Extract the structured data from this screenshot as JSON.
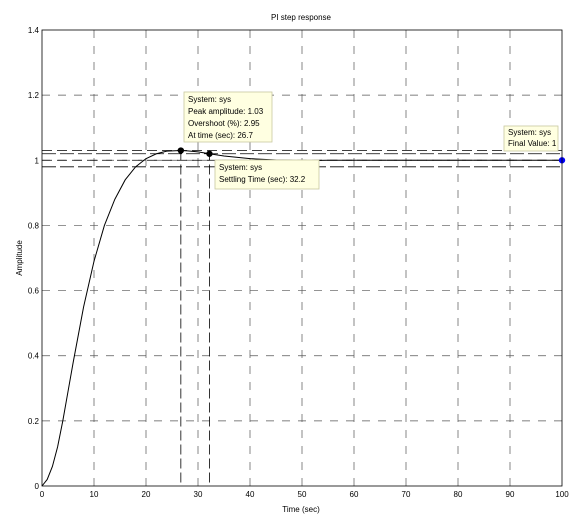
{
  "chart_data": {
    "type": "line",
    "title": "PI step response",
    "xlabel": "Time (sec)",
    "ylabel": "Amplitude",
    "xlim": [
      0,
      100
    ],
    "ylim": [
      0,
      1.4
    ],
    "xticks": [
      0,
      10,
      20,
      30,
      40,
      50,
      60,
      70,
      80,
      90,
      100
    ],
    "yticks": [
      0,
      0.2,
      0.4,
      0.6,
      0.8,
      1,
      1.2,
      1.4
    ],
    "xtick_labels": [
      "0",
      "10",
      "20",
      "30",
      "40",
      "50",
      "60",
      "70",
      "80",
      "90",
      "100"
    ],
    "ytick_labels": [
      "0",
      "0.2",
      "0.4",
      "0.6",
      "0.8",
      "1",
      "1.2",
      "1.4"
    ],
    "grid": true,
    "series": [
      {
        "color": "#000000",
        "x": [
          0,
          1,
          2,
          3,
          4,
          5,
          6,
          8,
          10,
          12,
          14,
          16,
          18,
          20,
          22,
          24,
          26.7,
          28,
          30,
          32.2,
          35,
          40,
          45,
          50,
          55,
          60,
          70,
          80,
          90,
          100
        ],
        "y": [
          0,
          0.02,
          0.06,
          0.12,
          0.2,
          0.29,
          0.38,
          0.55,
          0.69,
          0.8,
          0.88,
          0.94,
          0.98,
          1.005,
          1.02,
          1.028,
          1.03,
          1.029,
          1.026,
          1.02,
          1.013,
          1.005,
          1.001,
          0.999,
          1.0,
          1.0,
          1.0,
          1.0,
          1.0,
          1.0
        ]
      }
    ],
    "settling_band": [
      0.98,
      1.02
    ],
    "reference_lines_y": [
      1.03,
      1.0
    ],
    "reference_lines_x": [
      26.7,
      32.2
    ],
    "markers": [
      {
        "x": 26.7,
        "y": 1.03,
        "color": "#000000"
      },
      {
        "x": 32.2,
        "y": 1.02,
        "color": "#000000"
      },
      {
        "x": 100,
        "y": 1.0,
        "color": "#0000ff"
      }
    ],
    "datatips": [
      {
        "lines": [
          "System: sys",
          "Peak amplitude: 1.03",
          "Overshoot (%): 2.95",
          "At time (sec): 26.7"
        ]
      },
      {
        "lines": [
          "System: sys",
          "Settling Time (sec): 32.2"
        ]
      },
      {
        "lines": [
          "System: sys",
          "Final Value: 1"
        ]
      }
    ]
  }
}
